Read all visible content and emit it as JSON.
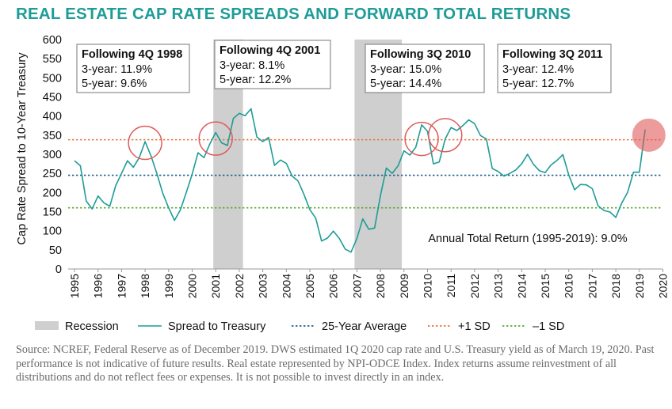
{
  "title": "REAL ESTATE CAP RATE SPREADS AND FORWARD TOTAL RETURNS",
  "source": "Source: NCREF, Federal Reserve as of December 2019. DWS estimated 1Q 2020 cap rate and U.S. Treasury yield as of March 19, 2020. Past performance is not indicative of future results. Real estate represented by NPI-ODCE Index. Index returns assume reinvestment of all distributions and do not reflect fees or expenses. It is not possible to invest directly in an index.",
  "chart_data": {
    "type": "line",
    "title": "REAL ESTATE CAP RATE SPREADS AND FORWARD TOTAL RETURNS",
    "xlabel": "",
    "ylabel": "Cap Rate Spread to 10-Year Treasury",
    "xlim": [
      1995,
      2020.25
    ],
    "ylim": [
      0,
      600
    ],
    "yticks": [
      0,
      50,
      100,
      150,
      200,
      250,
      300,
      350,
      400,
      450,
      500,
      550,
      600
    ],
    "xticks": [
      "1995",
      "1996",
      "1997",
      "1998",
      "1999",
      "2000",
      "2001",
      "2002",
      "2003",
      "2004",
      "2005",
      "2006",
      "2007",
      "2008",
      "2009",
      "2010",
      "2011",
      "2012",
      "2013",
      "2014",
      "2015",
      "2016",
      "2017",
      "2018",
      "2019",
      "2020"
    ],
    "grid": false,
    "legend": "bottom",
    "legend_labels": {
      "recession": "Recession",
      "spread": "Spread to Treasury",
      "average": "25-Year Average",
      "plus_sd": "+1 SD",
      "minus_sd": "–1 SD"
    },
    "colors": {
      "spread": "#1e9c97",
      "average": "#1f5d8c",
      "plus_sd": "#e8733a",
      "minus_sd": "#5aa832",
      "recession": "#cfcfcf",
      "highlight": "#e05a5a",
      "title": "#1e9c97"
    },
    "recessions": [
      [
        2001.0,
        2001.25
      ],
      [
        2007.0,
        2008.0
      ]
    ],
    "reference_lines": {
      "average": 245,
      "plus_sd": 338,
      "minus_sd": 160
    },
    "series": [
      {
        "name": "Spread to Treasury",
        "points": [
          [
            1995.0,
            283
          ],
          [
            1995.25,
            270
          ],
          [
            1995.5,
            178
          ],
          [
            1995.75,
            157
          ],
          [
            1996.0,
            191
          ],
          [
            1996.25,
            173
          ],
          [
            1996.5,
            164
          ],
          [
            1996.75,
            218
          ],
          [
            1997.0,
            250
          ],
          [
            1997.25,
            283
          ],
          [
            1997.5,
            266
          ],
          [
            1997.75,
            291
          ],
          [
            1998.0,
            333
          ],
          [
            1998.25,
            296
          ],
          [
            1998.5,
            250
          ],
          [
            1998.75,
            198
          ],
          [
            1999.0,
            160
          ],
          [
            1999.25,
            127
          ],
          [
            1999.5,
            155
          ],
          [
            1999.75,
            200
          ],
          [
            2000.0,
            248
          ],
          [
            2000.25,
            304
          ],
          [
            2000.5,
            291
          ],
          [
            2000.75,
            327
          ],
          [
            2001.0,
            357
          ],
          [
            2001.25,
            330
          ],
          [
            2001.5,
            323
          ],
          [
            2001.75,
            394
          ],
          [
            2002.0,
            407
          ],
          [
            2002.25,
            401
          ],
          [
            2002.5,
            419
          ],
          [
            2002.75,
            345
          ],
          [
            2003.0,
            333
          ],
          [
            2003.25,
            344
          ],
          [
            2003.5,
            271
          ],
          [
            2003.75,
            285
          ],
          [
            2004.0,
            276
          ],
          [
            2004.25,
            243
          ],
          [
            2004.5,
            230
          ],
          [
            2004.75,
            195
          ],
          [
            2005.0,
            155
          ],
          [
            2005.25,
            133
          ],
          [
            2005.5,
            73
          ],
          [
            2005.75,
            81
          ],
          [
            2006.0,
            99
          ],
          [
            2006.25,
            80
          ],
          [
            2006.5,
            52
          ],
          [
            2006.75,
            44
          ],
          [
            2007.0,
            80
          ],
          [
            2007.25,
            131
          ],
          [
            2007.5,
            104
          ],
          [
            2007.75,
            107
          ],
          [
            2008.0,
            192
          ],
          [
            2008.25,
            264
          ],
          [
            2008.5,
            250
          ],
          [
            2008.75,
            270
          ],
          [
            2009.0,
            309
          ],
          [
            2009.25,
            298
          ],
          [
            2009.5,
            318
          ],
          [
            2009.75,
            377
          ],
          [
            2010.0,
            360
          ],
          [
            2010.25,
            275
          ],
          [
            2010.5,
            280
          ],
          [
            2010.75,
            340
          ],
          [
            2011.0,
            370
          ],
          [
            2011.25,
            362
          ],
          [
            2011.5,
            375
          ],
          [
            2011.75,
            390
          ],
          [
            2012.0,
            380
          ],
          [
            2012.25,
            349
          ],
          [
            2012.5,
            340
          ],
          [
            2012.75,
            263
          ],
          [
            2013.0,
            255
          ],
          [
            2013.25,
            243
          ],
          [
            2013.5,
            250
          ],
          [
            2013.75,
            259
          ],
          [
            2014.0,
            275
          ],
          [
            2014.25,
            300
          ],
          [
            2014.5,
            274
          ],
          [
            2014.75,
            257
          ],
          [
            2015.0,
            252
          ],
          [
            2015.25,
            272
          ],
          [
            2015.5,
            284
          ],
          [
            2015.75,
            299
          ],
          [
            2016.0,
            246
          ],
          [
            2016.25,
            207
          ],
          [
            2016.5,
            221
          ],
          [
            2016.75,
            220
          ],
          [
            2017.0,
            210
          ],
          [
            2017.25,
            165
          ],
          [
            2017.5,
            153
          ],
          [
            2017.75,
            149
          ],
          [
            2018.0,
            135
          ],
          [
            2018.25,
            172
          ],
          [
            2018.5,
            200
          ],
          [
            2018.75,
            253
          ],
          [
            2019.0,
            253
          ],
          [
            2019.25,
            365
          ]
        ]
      }
    ],
    "highlights": [
      {
        "x": 1998.0,
        "y": 330,
        "filled": false
      },
      {
        "x": 2001.0,
        "y": 341,
        "filled": false
      },
      {
        "x": 2009.75,
        "y": 340,
        "filled": false
      },
      {
        "x": 2010.75,
        "y": 350,
        "filled": false
      },
      {
        "x": 2019.0,
        "y": 350,
        "filled": true
      }
    ],
    "annotations": [
      {
        "heading": "Following 4Q 1998",
        "line1": "3-year: 11.9%",
        "line2": "5-year: 9.6%"
      },
      {
        "heading": "Following 4Q 2001",
        "line1": "3-year: 8.1%",
        "line2": "5-year: 12.2%"
      },
      {
        "heading": "Following 3Q 2010",
        "line1": "3-year: 15.0%",
        "line2": "5-year: 14.4%"
      },
      {
        "heading": "Following 3Q 2011",
        "line1": "3-year: 12.4%",
        "line2": "5-year: 12.7%"
      }
    ],
    "note": "Annual Total Return (1995-2019): 9.0%"
  }
}
